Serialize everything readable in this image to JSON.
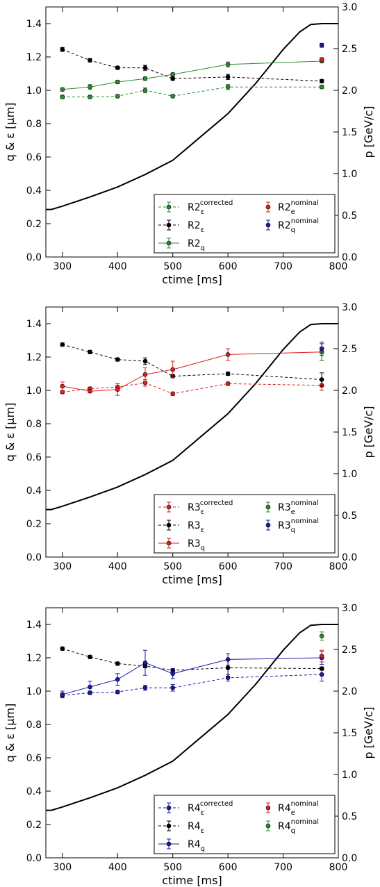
{
  "chart_data": [
    {
      "type": "line",
      "xlabel": "ctime [ms]",
      "ylabel": "q & ε [µm]",
      "ylabel_right": "p [GeV/c]",
      "xlim": [
        270,
        800
      ],
      "ylim": [
        0,
        1.5
      ],
      "ylim_right": [
        0,
        3.0
      ],
      "x_ticks": [
        "300",
        "400",
        "500",
        "600",
        "700",
        "800"
      ],
      "y_ticks": [
        "0.0",
        "0.2",
        "0.4",
        "0.6",
        "0.8",
        "1.0",
        "1.2",
        "1.4"
      ],
      "y_ticks_right": [
        "0.0",
        "0.5",
        "1.0",
        "1.5",
        "2.0",
        "2.5",
        "3.0"
      ],
      "momentum_curve": {
        "color": "#000000",
        "x": [
          270,
          280,
          300,
          350,
          400,
          450,
          500,
          550,
          600,
          650,
          700,
          730,
          750,
          770,
          800
        ],
        "p": [
          0.57,
          0.57,
          0.61,
          0.72,
          0.84,
          0.99,
          1.16,
          1.44,
          1.72,
          2.08,
          2.49,
          2.7,
          2.79,
          2.8,
          2.8
        ]
      },
      "series": [
        {
          "name_main": "R2",
          "name_sub": "ε",
          "name_sup": "corrected",
          "color": "#2e8b2e",
          "dash": true,
          "x": [
            300,
            350,
            400,
            450,
            500,
            600,
            770
          ],
          "y": [
            0.96,
            0.96,
            0.965,
            1.0,
            0.965,
            1.02,
            1.02
          ],
          "err": [
            0.01,
            0.01,
            0.01,
            0.015,
            0.01,
            0.015,
            0.01
          ]
        },
        {
          "name_main": "R2",
          "name_sub": "ε",
          "name_sup": "",
          "color": "#000000",
          "dash": true,
          "x": [
            300,
            350,
            400,
            450,
            500,
            600,
            770
          ],
          "y": [
            1.245,
            1.18,
            1.135,
            1.135,
            1.07,
            1.08,
            1.055
          ],
          "err": [
            0.012,
            0.01,
            0.01,
            0.015,
            0.01,
            0.015,
            0.01
          ]
        },
        {
          "name_main": "R2",
          "name_sub": "q",
          "name_sup": "",
          "color": "#2e8b2e",
          "dash": false,
          "x": [
            300,
            350,
            400,
            450,
            500,
            600,
            770
          ],
          "y": [
            1.005,
            1.02,
            1.05,
            1.07,
            1.095,
            1.155,
            1.175
          ],
          "err": [
            0.01,
            0.015,
            0.01,
            0.01,
            0.01,
            0.015,
            0.01
          ]
        },
        {
          "name_main": "R2",
          "name_sub": "e",
          "name_sup": "nominal",
          "color": "#dd2020",
          "dash": false,
          "point_only": true,
          "x": [
            770
          ],
          "y": [
            1.185
          ],
          "err": [
            0.01
          ]
        },
        {
          "name_main": "R2",
          "name_sub": "q",
          "name_sup": "nominal",
          "color": "#1a1aaa",
          "dash": false,
          "point_only": true,
          "x": [
            770
          ],
          "y": [
            1.27
          ],
          "err": [
            0.012
          ]
        }
      ]
    },
    {
      "type": "line",
      "xlabel": "ctime [ms]",
      "ylabel": "q & ε [µm]",
      "ylabel_right": "p [GeV/c]",
      "xlim": [
        270,
        800
      ],
      "ylim": [
        0,
        1.5
      ],
      "ylim_right": [
        0,
        3.0
      ],
      "x_ticks": [
        "300",
        "400",
        "500",
        "600",
        "700",
        "800"
      ],
      "y_ticks": [
        "0.0",
        "0.2",
        "0.4",
        "0.6",
        "0.8",
        "1.0",
        "1.2",
        "1.4"
      ],
      "y_ticks_right": [
        "0.0",
        "0.5",
        "1.0",
        "1.5",
        "2.0",
        "2.5",
        "3.0"
      ],
      "momentum_curve": {
        "color": "#000000",
        "x": [
          270,
          280,
          300,
          350,
          400,
          450,
          500,
          550,
          600,
          650,
          700,
          730,
          750,
          770,
          800
        ],
        "p": [
          0.57,
          0.57,
          0.61,
          0.72,
          0.84,
          0.99,
          1.16,
          1.44,
          1.72,
          2.08,
          2.49,
          2.7,
          2.79,
          2.8,
          2.8
        ]
      },
      "series": [
        {
          "name_main": "R3",
          "name_sub": "ε",
          "name_sup": "corrected",
          "color": "#dd2020",
          "dash": true,
          "x": [
            300,
            350,
            400,
            450,
            500,
            600,
            770
          ],
          "y": [
            0.99,
            1.01,
            1.02,
            1.045,
            0.98,
            1.04,
            1.03
          ],
          "err": [
            0.01,
            0.01,
            0.02,
            0.02,
            0.01,
            0.01,
            0.03
          ]
        },
        {
          "name_main": "R3",
          "name_sub": "ε",
          "name_sup": "",
          "color": "#000000",
          "dash": true,
          "x": [
            300,
            350,
            400,
            450,
            500,
            600,
            770
          ],
          "y": [
            1.275,
            1.23,
            1.185,
            1.175,
            1.085,
            1.1,
            1.065
          ],
          "err": [
            0.01,
            0.01,
            0.01,
            0.02,
            0.01,
            0.01,
            0.04
          ]
        },
        {
          "name_main": "R3",
          "name_sub": "q",
          "name_sup": "",
          "color": "#dd2020",
          "dash": false,
          "x": [
            300,
            350,
            400,
            450,
            500,
            600,
            770
          ],
          "y": [
            1.025,
            0.995,
            1.005,
            1.095,
            1.125,
            1.215,
            1.23
          ],
          "err": [
            0.025,
            0.01,
            0.035,
            0.04,
            0.05,
            0.035,
            0.05
          ]
        },
        {
          "name_main": "R3",
          "name_sub": "e",
          "name_sup": "nominal",
          "color": "#2e8b2e",
          "dash": false,
          "point_only": true,
          "x": [
            770
          ],
          "y": [
            1.23
          ],
          "err": [
            0.05
          ]
        },
        {
          "name_main": "R3",
          "name_sub": "q",
          "name_sup": "nominal",
          "color": "#1a1aaa",
          "dash": false,
          "point_only": true,
          "x": [
            770
          ],
          "y": [
            1.25
          ],
          "err": [
            0.04
          ]
        }
      ]
    },
    {
      "type": "line",
      "xlabel": "ctime [ms]",
      "ylabel": "q & ε [µm]",
      "ylabel_right": "p [GeV/c]",
      "xlim": [
        270,
        800
      ],
      "ylim": [
        0,
        1.5
      ],
      "ylim_right": [
        0,
        3.0
      ],
      "x_ticks": [
        "300",
        "400",
        "500",
        "600",
        "700",
        "800"
      ],
      "y_ticks": [
        "0.0",
        "0.2",
        "0.4",
        "0.6",
        "0.8",
        "1.0",
        "1.2",
        "1.4"
      ],
      "y_ticks_right": [
        "0.0",
        "0.5",
        "1.0",
        "1.5",
        "2.0",
        "2.5",
        "3.0"
      ],
      "momentum_curve": {
        "color": "#000000",
        "x": [
          270,
          280,
          300,
          350,
          400,
          450,
          500,
          550,
          600,
          650,
          700,
          730,
          750,
          770,
          800
        ],
        "p": [
          0.57,
          0.57,
          0.61,
          0.72,
          0.84,
          0.99,
          1.16,
          1.44,
          1.72,
          2.08,
          2.49,
          2.7,
          2.79,
          2.8,
          2.8
        ]
      },
      "series": [
        {
          "name_main": "R4",
          "name_sub": "ε",
          "name_sup": "corrected",
          "color": "#1a1aaa",
          "dash": true,
          "x": [
            300,
            350,
            400,
            450,
            500,
            600,
            770
          ],
          "y": [
            0.975,
            0.99,
            0.995,
            1.02,
            1.02,
            1.08,
            1.1
          ],
          "err": [
            0.01,
            0.01,
            0.01,
            0.015,
            0.02,
            0.02,
            0.04
          ]
        },
        {
          "name_main": "R4",
          "name_sub": "ε",
          "name_sup": "",
          "color": "#000000",
          "dash": true,
          "x": [
            300,
            350,
            400,
            450,
            500,
            600,
            770
          ],
          "y": [
            1.255,
            1.205,
            1.165,
            1.15,
            1.125,
            1.14,
            1.135
          ],
          "err": [
            0.01,
            0.01,
            0.01,
            0.01,
            0.01,
            0.05,
            0.01
          ]
        },
        {
          "name_main": "R4",
          "name_sub": "q",
          "name_sup": "",
          "color": "#1a1aaa",
          "dash": false,
          "x": [
            300,
            350,
            400,
            450,
            500,
            600,
            770
          ],
          "y": [
            0.98,
            1.025,
            1.07,
            1.17,
            1.105,
            1.19,
            1.2
          ],
          "err": [
            0.02,
            0.035,
            0.035,
            0.075,
            0.03,
            0.035,
            0.04
          ]
        },
        {
          "name_main": "R4",
          "name_sub": "e",
          "name_sup": "nominal",
          "color": "#dd2020",
          "dash": false,
          "point_only": true,
          "x": [
            770
          ],
          "y": [
            1.21
          ],
          "err": [
            0.035
          ]
        },
        {
          "name_main": "R4",
          "name_sub": "q",
          "name_sup": "nominal",
          "color": "#2e8b2e",
          "dash": false,
          "point_only": true,
          "x": [
            770
          ],
          "y": [
            1.33
          ],
          "err": [
            0.025
          ]
        }
      ]
    }
  ]
}
